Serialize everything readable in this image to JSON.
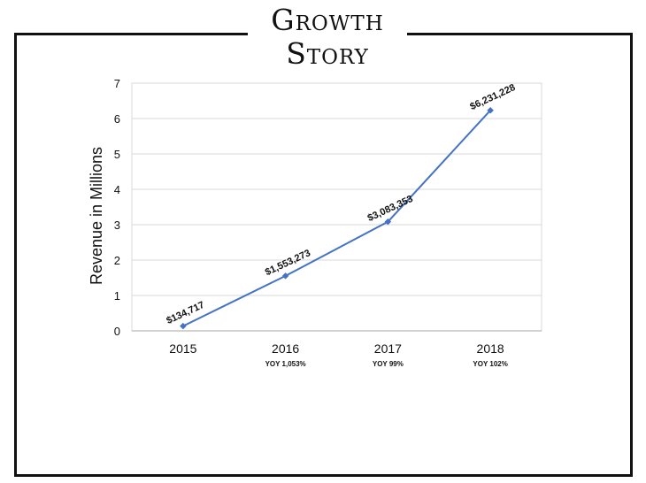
{
  "title": {
    "line1": "Growth",
    "line2": "Story"
  },
  "colors": {
    "line": "#4472c4",
    "grid": "#d9d9d9",
    "frame": "#111111",
    "text": "#111111"
  },
  "chart_data": {
    "type": "line",
    "categories": [
      "2015",
      "2016",
      "2017",
      "2018"
    ],
    "x_sublabels": [
      "",
      "YOY 1,053%",
      "YOY 99%",
      "YOY 102%"
    ],
    "ylabel": "Revenue in Millions",
    "xlabel": "",
    "ylim": [
      0,
      7
    ],
    "yticks": [
      0,
      1,
      2,
      3,
      4,
      5,
      6,
      7
    ],
    "grid": true,
    "legend": "none",
    "series": [
      {
        "values": [
          0.134717,
          1.553273,
          3.083353,
          6.231228
        ],
        "data_labels": [
          "$134,717",
          "$1,553,273",
          "$3,083,353",
          "$6,231,228"
        ]
      }
    ]
  }
}
